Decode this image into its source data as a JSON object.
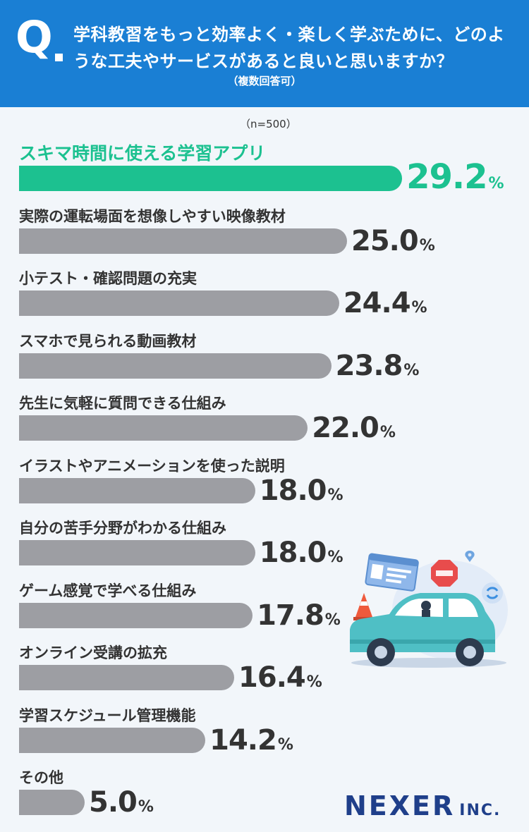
{
  "header": {
    "q_mark": "Q",
    "question": "学科教習をもっと効率よく・楽しく学ぶために、どのような工夫やサービスがあると良いと思いますか？",
    "note": "（複数回答可）"
  },
  "sample_size": "（n=500）",
  "unit": "%",
  "brand": {
    "name": "NEXER",
    "suffix": "INC."
  },
  "colors": {
    "header": "#1a7fd4",
    "highlight": "#1cc190",
    "bar": "#9d9ea3",
    "brand": "#1f3f8a"
  },
  "illustration_icons": [
    "driver-license-icon",
    "stop-sign-icon",
    "car-icon",
    "traffic-cone-icon",
    "location-pin-icon",
    "refresh-icon"
  ],
  "chart_data": {
    "type": "bar",
    "orientation": "horizontal",
    "categories": [
      "スキマ時間に使える学習アプリ",
      "実際の運転場面を想像しやすい映像教材",
      "小テスト・確認問題の充実",
      "スマホで見られる動画教材",
      "先生に気軽に質問できる仕組み",
      "イラストやアニメーションを使った説明",
      "自分の苦手分野がわかる仕組み",
      "ゲーム感覚で学べる仕組み",
      "オンライン受講の拡充",
      "学習スケジュール管理機能",
      "その他"
    ],
    "values": [
      29.2,
      25.0,
      24.4,
      23.8,
      22.0,
      18.0,
      18.0,
      17.8,
      16.4,
      14.2,
      5.0
    ],
    "value_labels": [
      "29.2",
      "25.0",
      "24.4",
      "23.8",
      "22.0",
      "18.0",
      "18.0",
      "17.8",
      "16.4",
      "14.2",
      "5.0"
    ],
    "highlight_index": 0,
    "grid": false
  }
}
